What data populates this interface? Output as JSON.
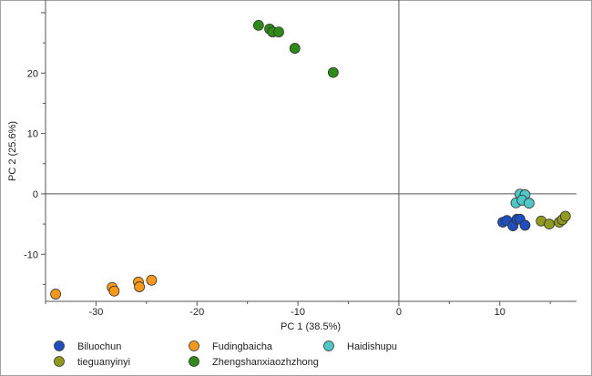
{
  "chart_data": {
    "type": "scatter",
    "title": "",
    "xlabel": "PC 1 (38.5%)",
    "ylabel": "PC 2 (25.6%)",
    "xlim": [
      -35,
      17.6
    ],
    "ylim": [
      -17.8,
      32.1
    ],
    "xticks": [
      -30,
      -20,
      -10,
      0,
      10
    ],
    "yticks": [
      -10,
      0,
      10,
      20
    ],
    "grid": false,
    "legend": "bottom",
    "series": [
      {
        "name": "Biluochun",
        "color": "#1f4fbf",
        "points": [
          [
            10.3,
            -4.7
          ],
          [
            10.7,
            -4.4
          ],
          [
            11.3,
            -5.3
          ],
          [
            11.7,
            -4.2
          ],
          [
            12.0,
            -4.2
          ],
          [
            12.5,
            -5.2
          ]
        ]
      },
      {
        "name": "Fudingbaicha",
        "color": "#f7981d",
        "points": [
          [
            -34.0,
            -16.6
          ],
          [
            -28.4,
            -15.5
          ],
          [
            -28.2,
            -16.1
          ],
          [
            -25.8,
            -14.6
          ],
          [
            -25.7,
            -15.4
          ],
          [
            -24.5,
            -14.3
          ]
        ]
      },
      {
        "name": "Haidishupu",
        "color": "#4fc7c7",
        "points": [
          [
            12.0,
            -0.05
          ],
          [
            12.5,
            -0.15
          ],
          [
            11.6,
            -1.5
          ],
          [
            12.2,
            -1.05
          ],
          [
            12.9,
            -1.55
          ]
        ]
      },
      {
        "name": "tieguanyinyi",
        "color": "#8f9a1f",
        "points": [
          [
            14.1,
            -4.5
          ],
          [
            14.9,
            -5.0
          ],
          [
            15.9,
            -4.7
          ],
          [
            16.2,
            -4.3
          ],
          [
            16.5,
            -3.7
          ]
        ]
      },
      {
        "name": "Zhengshanxiaozhzhong",
        "color": "#2e8b17",
        "points": [
          [
            -13.9,
            27.9
          ],
          [
            -12.8,
            27.3
          ],
          [
            -12.5,
            26.8
          ],
          [
            -11.9,
            26.8
          ],
          [
            -10.3,
            24.1
          ],
          [
            -6.5,
            20.1
          ]
        ]
      }
    ]
  }
}
